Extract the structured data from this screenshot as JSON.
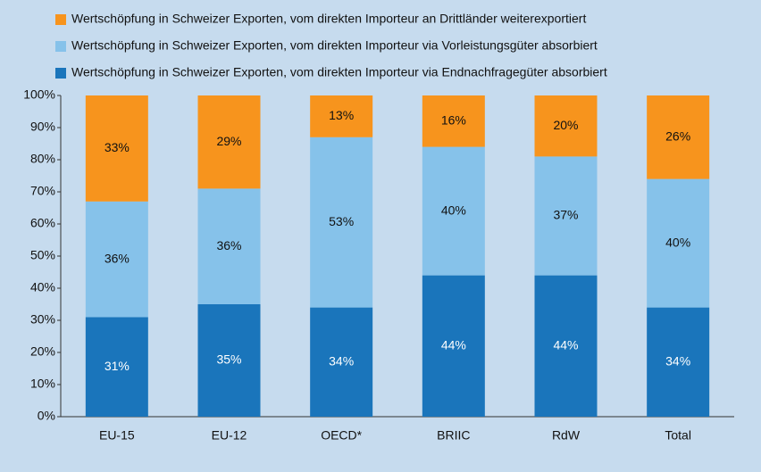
{
  "chart_data": {
    "type": "stacked_bar",
    "categories": [
      "EU-15",
      "EU-12",
      "OECD*",
      "BRIIC",
      "RdW",
      "Total"
    ],
    "series": [
      {
        "name": "Wertschöpfung in Schweizer Exporten, vom direkten Importeur via Endnachfragegüter absorbiert",
        "color": "#1a75bb",
        "values": [
          31,
          35,
          34,
          44,
          44,
          34
        ],
        "value_labels": [
          "31%",
          "35%",
          "34%",
          "44%",
          "44%",
          "34%"
        ]
      },
      {
        "name": "Wertschöpfung in Schweizer Exporten, vom direkten Importeur via Vorleistungsgüter absorbiert",
        "color": "#86c2ea",
        "values": [
          36,
          36,
          53,
          40,
          37,
          40
        ],
        "value_labels": [
          "36%",
          "36%",
          "53%",
          "40%",
          "37%",
          "40%"
        ]
      },
      {
        "name": "Wertschöpfung in Schweizer Exporten, vom direkten Importeur an Drittländer weiterexportiert",
        "color": "#f7941d",
        "values": [
          33,
          29,
          13,
          16,
          20,
          26
        ],
        "value_labels": [
          "33%",
          "29%",
          "13%",
          "16%",
          "20%",
          "26%"
        ]
      }
    ],
    "ylim": [
      0,
      100
    ],
    "yticks": [
      {
        "value": 0,
        "label": "0%"
      },
      {
        "value": 10,
        "label": "10%"
      },
      {
        "value": 20,
        "label": "20%"
      },
      {
        "value": 30,
        "label": "30%"
      },
      {
        "value": 40,
        "label": "40%"
      },
      {
        "value": 50,
        "label": "50%"
      },
      {
        "value": 60,
        "label": "60%"
      },
      {
        "value": 70,
        "label": "70%"
      },
      {
        "value": 80,
        "label": "80%"
      },
      {
        "value": 90,
        "label": "90%"
      },
      {
        "value": 100,
        "label": "100%"
      }
    ]
  }
}
